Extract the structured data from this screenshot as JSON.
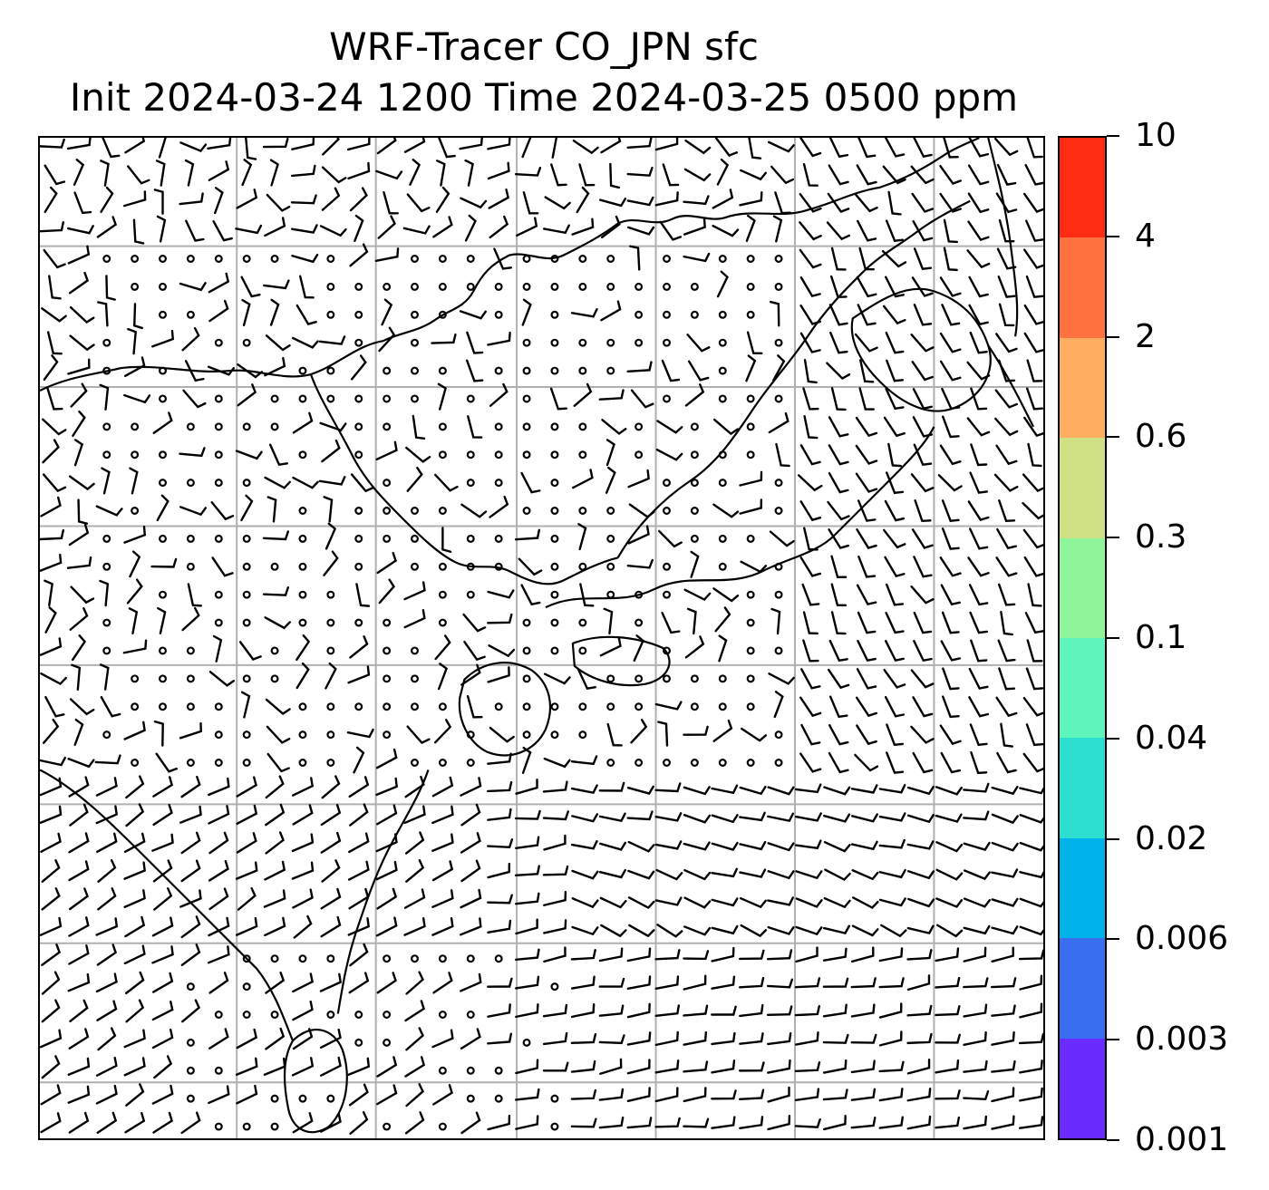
{
  "title": {
    "line1": "WRF-Tracer CO_JPN sfc",
    "line2": "Init 2024-03-24 1200 Time 2024-03-25 0500 ppm"
  },
  "map": {
    "gridlines": true,
    "gridline_color": "#b0b0b0",
    "coastline_color": "#000000",
    "wind_barbs": true,
    "tracer_fill": "none visible"
  },
  "colorbar": {
    "ticks": [
      "0.001",
      "0.003",
      "0.006",
      "0.02",
      "0.04",
      "0.1",
      "0.3",
      "0.6",
      "2",
      "4",
      "10"
    ],
    "colors": [
      "#6a2bff",
      "#3a6ef0",
      "#00b2ea",
      "#2ddfd0",
      "#5df5bb",
      "#8ef59a",
      "#d0e085",
      "#fdae61",
      "#ff7240",
      "#ff2b12"
    ]
  }
}
